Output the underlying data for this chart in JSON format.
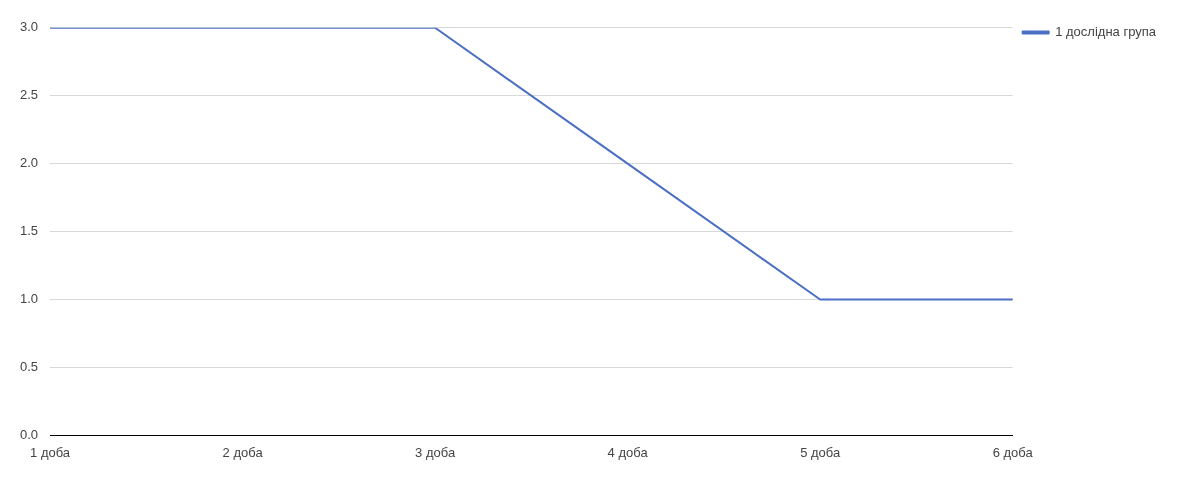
{
  "chart_data": {
    "type": "line",
    "categories": [
      "1 доба",
      "2 доба",
      "3 доба",
      "4 доба",
      "5 доба",
      "6 доба"
    ],
    "series": [
      {
        "name": "1 дослідна група",
        "color": "#4a6fc4",
        "values": [
          3,
          3,
          3,
          2,
          1,
          1
        ]
      }
    ],
    "ylim": [
      0,
      3
    ],
    "yticks": [
      {
        "value": 0,
        "label": "0.0"
      },
      {
        "value": 0.5,
        "label": "0.5"
      },
      {
        "value": 1,
        "label": "1.0"
      },
      {
        "value": 1.5,
        "label": "1.5"
      },
      {
        "value": 2,
        "label": "2.0"
      },
      {
        "value": 2.5,
        "label": "2.5"
      },
      {
        "value": 3,
        "label": "3.0"
      }
    ],
    "grid": "y",
    "legend": "top right",
    "marker": "none",
    "line_style": "solid"
  }
}
